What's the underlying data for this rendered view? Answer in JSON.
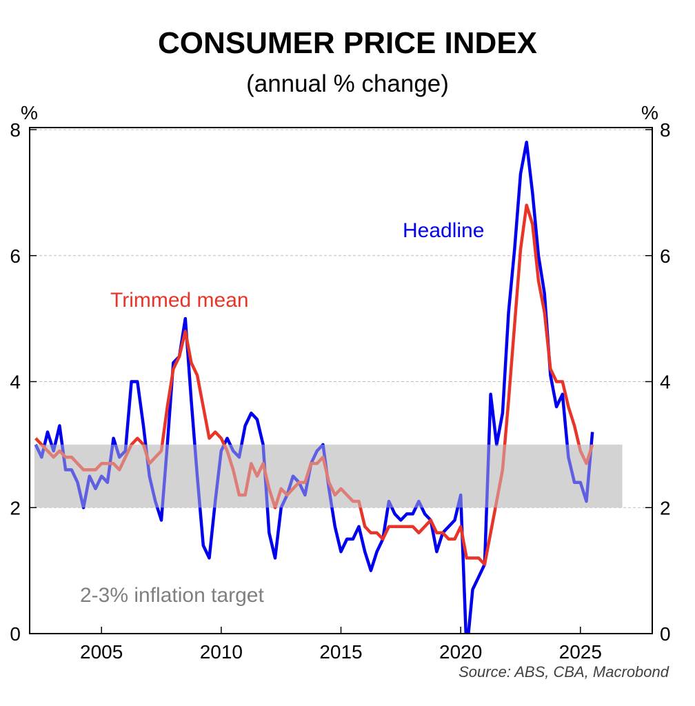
{
  "chart_data": {
    "type": "line",
    "title": "CONSUMER PRICE INDEX",
    "subtitle": "(annual % change)",
    "ylabel_left": "%",
    "ylabel_right": "%",
    "xlabel": "",
    "xlim": [
      2002,
      2028
    ],
    "ylim": [
      0,
      8
    ],
    "x_ticks": [
      "2005",
      "2010",
      "2015",
      "2020",
      "2025"
    ],
    "x_tick_values": [
      2005,
      2010,
      2015,
      2020,
      2025
    ],
    "y_ticks": [
      "0",
      "2",
      "4",
      "6",
      "8"
    ],
    "y_tick_values": [
      0,
      2,
      4,
      6,
      8
    ],
    "grid": "horizontal dashed",
    "frequency": "quarterly",
    "target_band": {
      "label": "2-3% inflation target",
      "low": 2,
      "high": 3,
      "x_start": 2002.2,
      "x_end": 2026.75,
      "color": "#d3d3d3"
    },
    "series": [
      {
        "name": "Headline",
        "color": "#0000ee",
        "start": 2002.25,
        "step": 0.25,
        "values": [
          3.0,
          2.8,
          3.2,
          2.9,
          3.3,
          2.6,
          2.6,
          2.4,
          2.0,
          2.5,
          2.3,
          2.5,
          2.4,
          3.1,
          2.8,
          2.9,
          4.0,
          4.0,
          3.3,
          2.5,
          2.1,
          1.8,
          3.0,
          4.3,
          4.4,
          5.0,
          3.7,
          2.5,
          1.4,
          1.2,
          2.1,
          2.9,
          3.1,
          2.9,
          2.8,
          3.3,
          3.5,
          3.4,
          3.0,
          1.6,
          1.2,
          2.0,
          2.2,
          2.5,
          2.4,
          2.2,
          2.7,
          2.9,
          3.0,
          2.3,
          1.7,
          1.3,
          1.5,
          1.5,
          1.7,
          1.3,
          1.0,
          1.3,
          1.5,
          2.1,
          1.9,
          1.8,
          1.9,
          1.9,
          2.1,
          1.9,
          1.8,
          1.3,
          1.6,
          1.7,
          1.8,
          2.2,
          -0.3,
          0.7,
          0.9,
          1.1,
          3.8,
          3.0,
          3.5,
          5.1,
          6.1,
          7.3,
          7.8,
          7.0,
          6.0,
          5.4,
          4.1,
          3.6,
          3.8,
          2.8,
          2.4,
          2.4,
          2.1,
          3.2
        ]
      },
      {
        "name": "Trimmed mean",
        "color": "#e8352a",
        "start": 2002.25,
        "step": 0.25,
        "values": [
          3.1,
          3.0,
          2.9,
          2.8,
          2.9,
          2.8,
          2.8,
          2.7,
          2.6,
          2.6,
          2.6,
          2.7,
          2.7,
          2.7,
          2.6,
          2.8,
          3.0,
          3.1,
          3.0,
          2.7,
          2.8,
          2.9,
          3.6,
          4.2,
          4.4,
          4.8,
          4.3,
          4.1,
          3.6,
          3.1,
          3.2,
          3.1,
          2.9,
          2.6,
          2.2,
          2.2,
          2.7,
          2.5,
          2.7,
          2.3,
          2.0,
          2.3,
          2.2,
          2.3,
          2.4,
          2.4,
          2.7,
          2.7,
          2.8,
          2.4,
          2.2,
          2.3,
          2.2,
          2.1,
          2.1,
          1.7,
          1.6,
          1.6,
          1.5,
          1.7,
          1.7,
          1.7,
          1.7,
          1.7,
          1.6,
          1.7,
          1.8,
          1.6,
          1.6,
          1.5,
          1.5,
          1.7,
          1.2,
          1.2,
          1.2,
          1.1,
          1.6,
          2.1,
          2.6,
          3.7,
          4.9,
          6.1,
          6.8,
          6.5,
          5.6,
          5.1,
          4.2,
          4.0,
          4.0,
          3.6,
          3.3,
          2.9,
          2.7,
          3.0
        ]
      }
    ],
    "annotations": [
      {
        "text": "Headline",
        "color": "#0000ee"
      },
      {
        "text": "Trimmed mean",
        "color": "#e8352a"
      },
      {
        "text": "2-3% inflation target",
        "color": "#7f7f7f"
      }
    ],
    "source": "Source: ABS, CBA, Macrobond"
  }
}
